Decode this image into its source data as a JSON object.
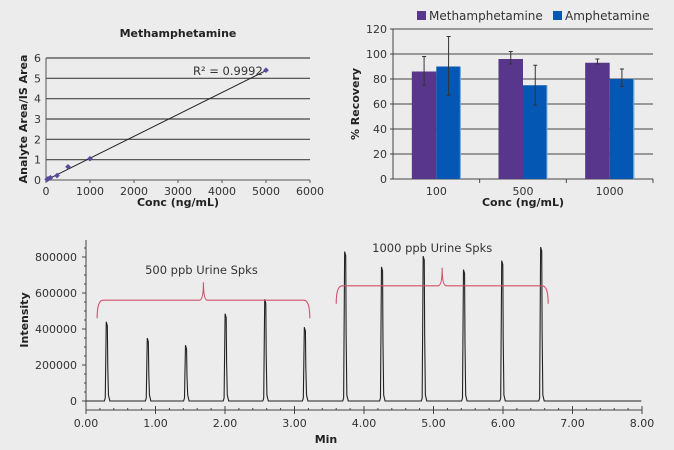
{
  "chart_data": [
    {
      "type": "scatter",
      "title": "Methamphetamine",
      "xlabel": "Conc (ng/mL)",
      "ylabel": "Analyte Area/IS Area",
      "xlim": [
        0,
        6000
      ],
      "ylim": [
        0,
        6
      ],
      "xticks": [
        "0",
        "1000",
        "2000",
        "3000",
        "4000",
        "5000",
        "6000"
      ],
      "yticks": [
        "0",
        "1",
        "2",
        "3",
        "4",
        "5",
        "6"
      ],
      "grid": "horizontal",
      "series": [
        {
          "name": "Methamphetamine",
          "color": "#5a4a9c",
          "x": [
            25,
            50,
            100,
            250,
            500,
            1000,
            5000
          ],
          "y": [
            0.03,
            0.06,
            0.11,
            0.22,
            0.65,
            1.05,
            5.4
          ]
        }
      ],
      "trendline": {
        "x": [
          0,
          5000
        ],
        "y": [
          -0.01,
          5.38
        ]
      },
      "annotation": "R² = 0.9992"
    },
    {
      "type": "bar",
      "title": "",
      "xlabel": "Conc (ng/mL)",
      "ylabel": "% Recovery",
      "ylim": [
        0,
        120
      ],
      "yticks": [
        "0",
        "20",
        "40",
        "60",
        "80",
        "100",
        "120"
      ],
      "categories": [
        "100",
        "500",
        "1000"
      ],
      "grid": "horizontal",
      "legend_position": "top",
      "series": [
        {
          "name": "Methamphetamine",
          "color": "#58368c",
          "values": [
            86,
            96,
            93
          ],
          "err_low": [
            75,
            92,
            92
          ],
          "err_high": [
            98,
            102,
            96
          ]
        },
        {
          "name": "Amphetamine",
          "color": "#0458b4",
          "values": [
            90,
            75,
            80
          ],
          "err_low": [
            67,
            59,
            74
          ],
          "err_high": [
            114,
            91,
            88
          ]
        }
      ]
    },
    {
      "type": "line",
      "title": "",
      "xlabel": "Min",
      "ylabel": "Intensity",
      "xlim": [
        0,
        8
      ],
      "ylim": [
        0,
        900000
      ],
      "xticks": [
        "0.00",
        "1.00",
        "2.00",
        "3.00",
        "4.00",
        "5.00",
        "6.00",
        "7.00",
        "8.00"
      ],
      "yticks": [
        "0",
        "200000",
        "400000",
        "600000",
        "800000"
      ],
      "peaks": {
        "time": [
          0.3,
          0.89,
          1.44,
          2.01,
          2.58,
          3.15,
          3.73,
          4.26,
          4.86,
          5.44,
          5.99,
          6.55
        ],
        "intensity": [
          440000,
          350000,
          310000,
          485000,
          565000,
          410000,
          830000,
          745000,
          805000,
          730000,
          780000,
          855000
        ]
      },
      "annotations": [
        {
          "text": "500 ppb Urine Spks",
          "x_range": [
            0.16,
            3.22
          ],
          "y": 560000,
          "color": "#d0506a"
        },
        {
          "text": "1000 ppb Urine Spks",
          "x_range": [
            3.6,
            6.65
          ],
          "y": 640000,
          "color": "#d0506a"
        }
      ],
      "trace_end": 7.99
    }
  ]
}
